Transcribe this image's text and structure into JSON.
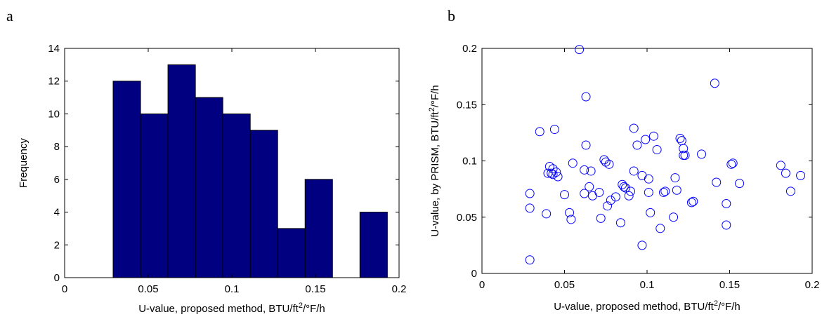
{
  "panels": {
    "a": "a",
    "b": "b"
  },
  "chart_data": [
    {
      "type": "bar",
      "panel": "a",
      "xlabel_main": "U-value, proposed method, BTU/ft",
      "xlabel_sup": "2",
      "xlabel_tail": "/°F/h",
      "ylabel": "Frequency",
      "xlim": [
        0,
        0.2
      ],
      "ylim": [
        0,
        14
      ],
      "xticks": [
        0,
        0.05,
        0.1,
        0.15,
        0.2
      ],
      "xtick_labels": [
        "0",
        "0.05",
        "0.1",
        "0.15",
        "0.2"
      ],
      "yticks": [
        0,
        2,
        4,
        6,
        8,
        10,
        12,
        14
      ],
      "ytick_labels": [
        "0",
        "2",
        "4",
        "6",
        "8",
        "10",
        "12",
        "14"
      ],
      "bin_edges": [
        0.029,
        0.0454,
        0.0618,
        0.0782,
        0.0946,
        0.111,
        0.1274,
        0.1438,
        0.1602,
        0.1766,
        0.193
      ],
      "values": [
        12,
        10,
        13,
        11,
        10,
        9,
        3,
        6,
        0,
        4
      ],
      "bar_color": "#000080",
      "edge_color": "#000000"
    },
    {
      "type": "scatter",
      "panel": "b",
      "xlabel_main": "U-value, proposed method, BTU/ft",
      "xlabel_sup": "2",
      "xlabel_tail": "/°F/h",
      "ylabel_main": "U-value, by PRISM, BTU/ft",
      "ylabel_sup": "2",
      "ylabel_tail": "/°F/h",
      "xlim": [
        0,
        0.2
      ],
      "ylim": [
        0,
        0.2
      ],
      "xticks": [
        0,
        0.05,
        0.1,
        0.15,
        0.2
      ],
      "xtick_labels": [
        "0",
        "0.05",
        "0.1",
        "0.15",
        "0.2"
      ],
      "yticks": [
        0,
        0.05,
        0.1,
        0.15,
        0.2
      ],
      "ytick_labels": [
        "0",
        "0.05",
        "0.1",
        "0.15",
        "0.2"
      ],
      "marker": "circle",
      "marker_color": "#0000ff",
      "x": [
        0.059,
        0.141,
        0.063,
        0.092,
        0.035,
        0.044,
        0.104,
        0.099,
        0.063,
        0.055,
        0.041,
        0.043,
        0.042,
        0.045,
        0.046,
        0.04,
        0.043,
        0.062,
        0.066,
        0.065,
        0.074,
        0.075,
        0.077,
        0.067,
        0.078,
        0.071,
        0.029,
        0.029,
        0.039,
        0.05,
        0.053,
        0.054,
        0.062,
        0.072,
        0.076,
        0.081,
        0.085,
        0.086,
        0.087,
        0.089,
        0.09,
        0.092,
        0.094,
        0.097,
        0.101,
        0.101,
        0.102,
        0.106,
        0.108,
        0.11,
        0.111,
        0.116,
        0.117,
        0.118,
        0.12,
        0.121,
        0.122,
        0.122,
        0.123,
        0.127,
        0.128,
        0.133,
        0.142,
        0.148,
        0.148,
        0.151,
        0.152,
        0.156,
        0.181,
        0.184,
        0.187,
        0.193,
        0.084,
        0.097,
        0.029
      ],
      "y": [
        0.199,
        0.169,
        0.157,
        0.129,
        0.126,
        0.128,
        0.122,
        0.119,
        0.114,
        0.098,
        0.095,
        0.093,
        0.089,
        0.09,
        0.086,
        0.089,
        0.088,
        0.092,
        0.091,
        0.077,
        0.101,
        0.099,
        0.097,
        0.069,
        0.065,
        0.072,
        0.071,
        0.058,
        0.053,
        0.07,
        0.054,
        0.048,
        0.071,
        0.049,
        0.06,
        0.068,
        0.079,
        0.077,
        0.076,
        0.069,
        0.073,
        0.091,
        0.114,
        0.087,
        0.084,
        0.072,
        0.054,
        0.11,
        0.04,
        0.072,
        0.073,
        0.05,
        0.085,
        0.074,
        0.12,
        0.118,
        0.111,
        0.105,
        0.105,
        0.063,
        0.064,
        0.106,
        0.081,
        0.062,
        0.043,
        0.097,
        0.098,
        0.08,
        0.096,
        0.089,
        0.073,
        0.087,
        0.045,
        0.025,
        0.012
      ]
    }
  ]
}
